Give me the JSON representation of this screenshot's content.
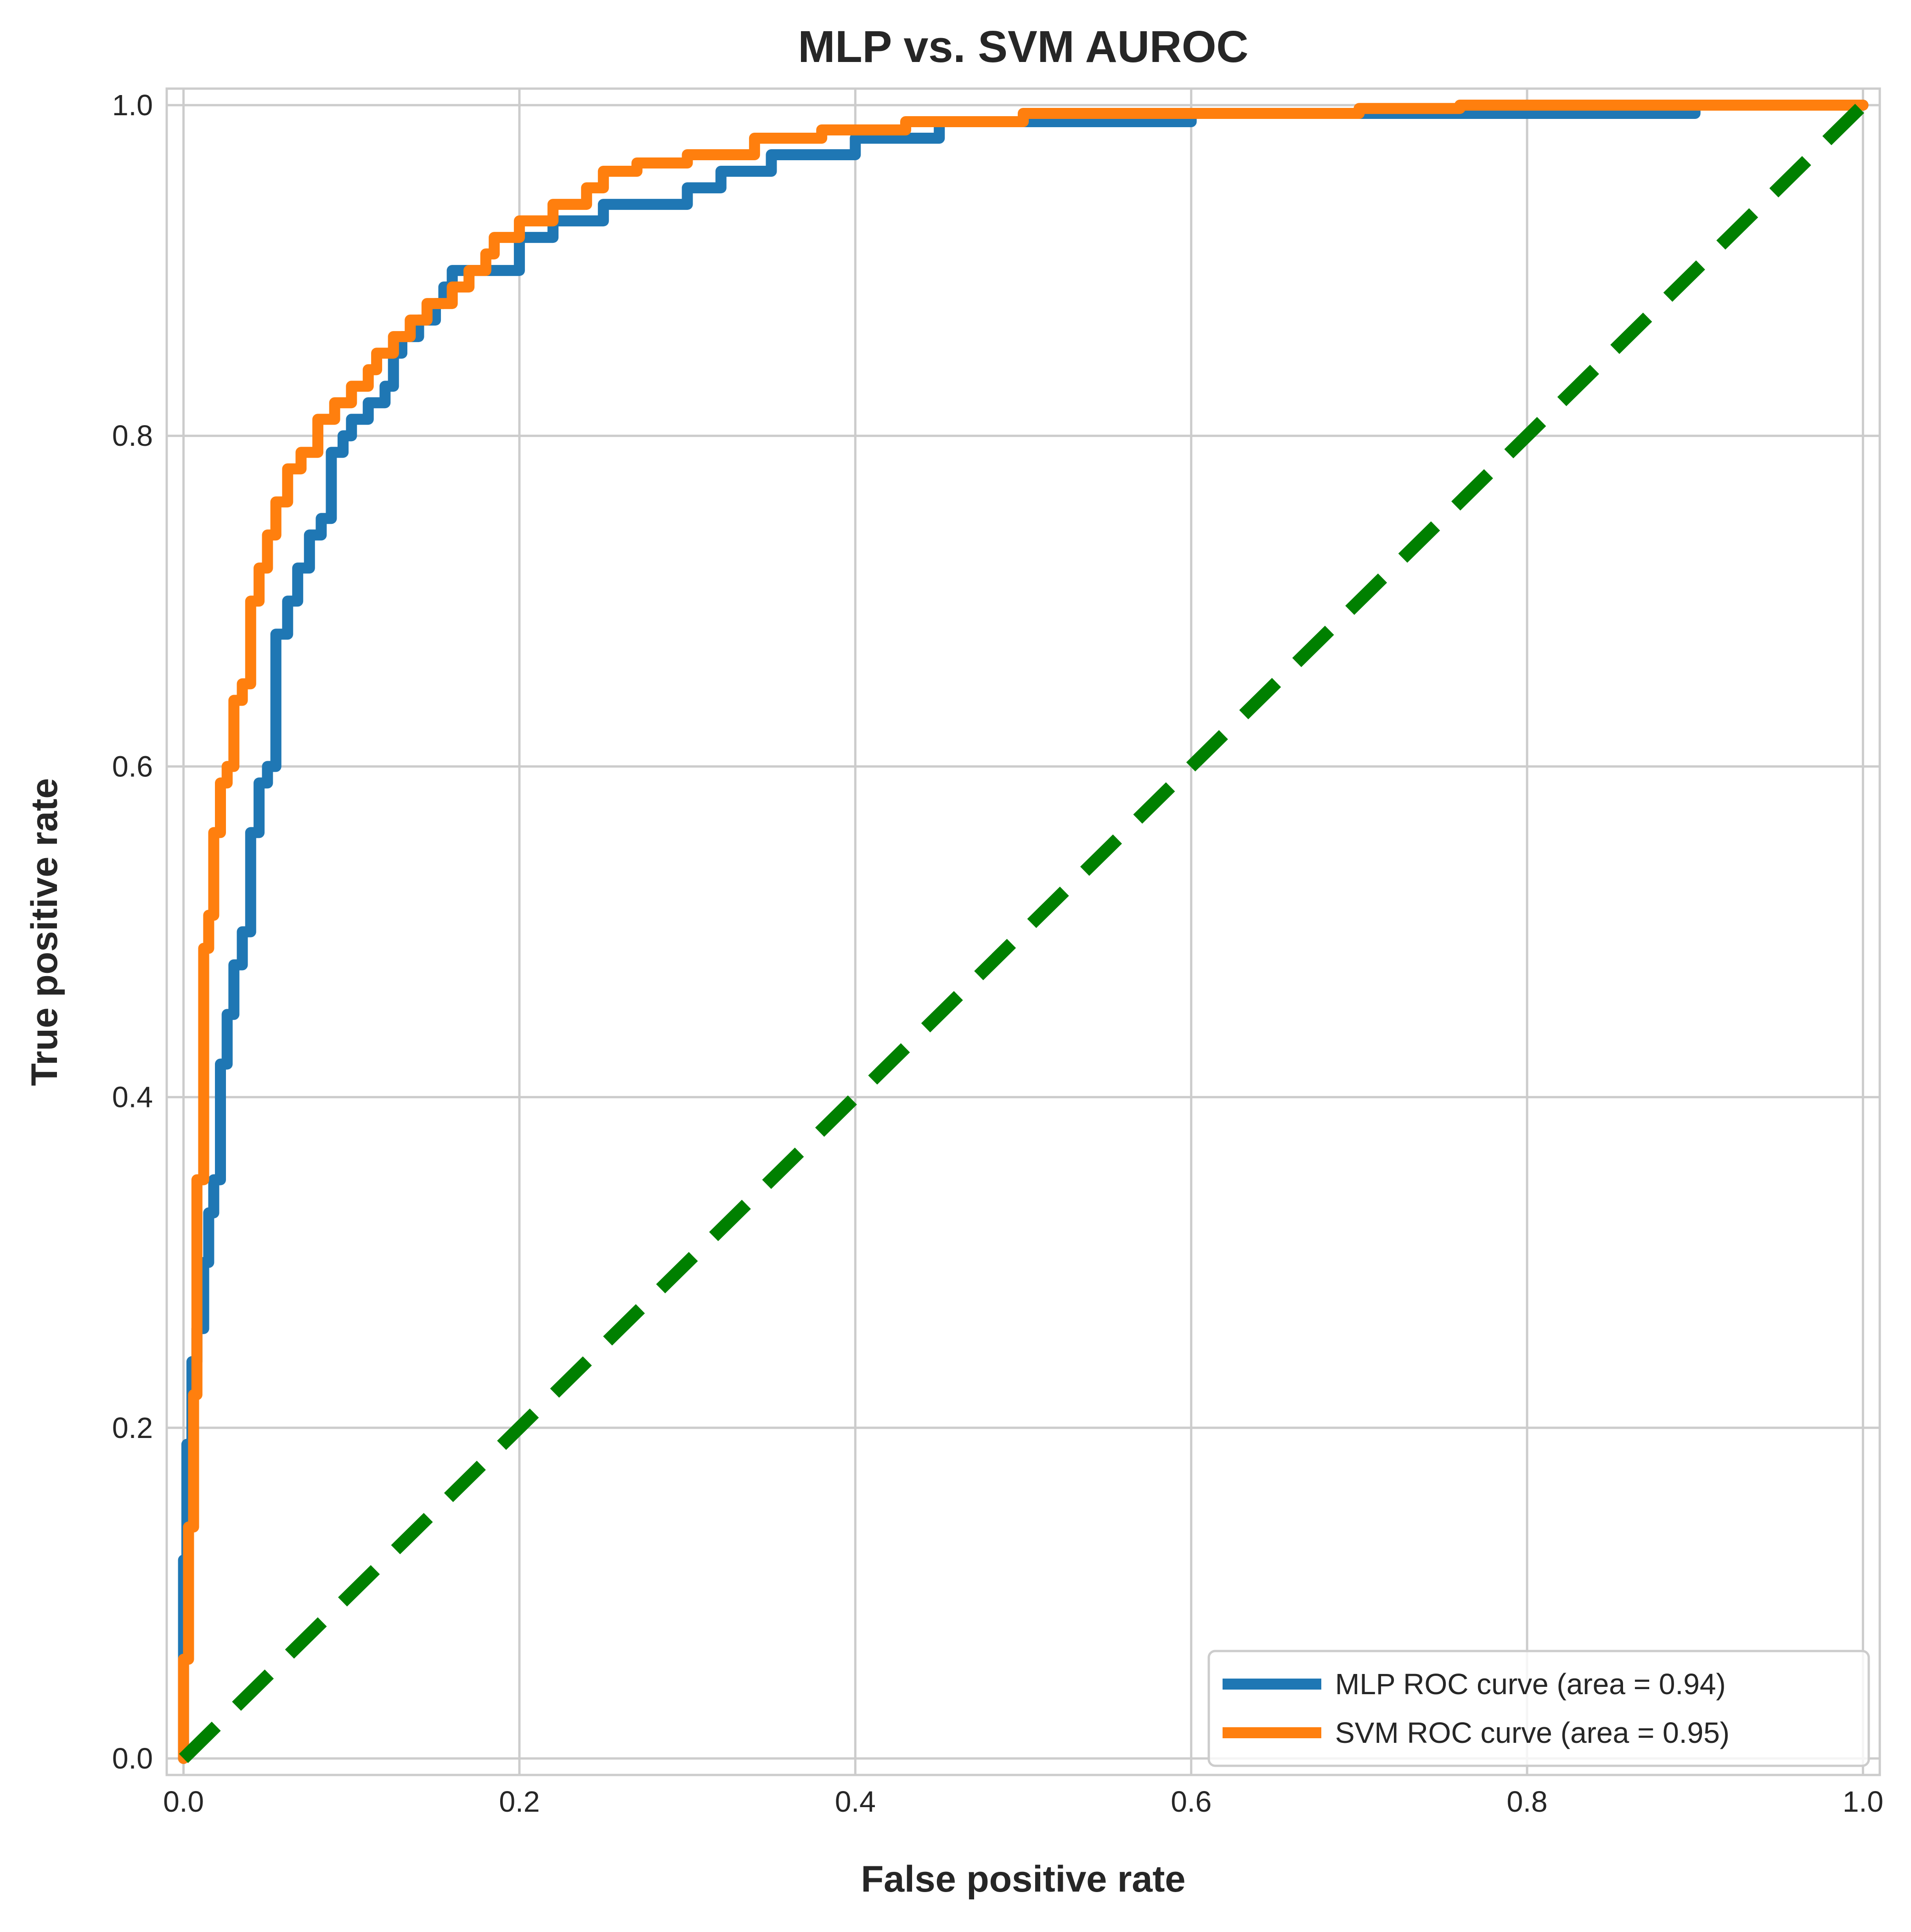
{
  "chart_data": {
    "type": "line",
    "title": "MLP vs. SVM AUROC",
    "xlabel": "False positive rate",
    "ylabel": "True positive rate",
    "xlim": [
      -0.01,
      1.01
    ],
    "ylim": [
      -0.01,
      1.01
    ],
    "xticks": [
      "0.0",
      "0.2",
      "0.4",
      "0.6",
      "0.8",
      "1.0"
    ],
    "yticks": [
      "0.0",
      "0.2",
      "0.4",
      "0.6",
      "0.8",
      "1.0"
    ],
    "grid": true,
    "legend_position": "lower-right",
    "series": [
      {
        "name": "MLP ROC curve (area = 0.94)",
        "color": "#1f77b4",
        "style": "solid",
        "x": [
          0.0,
          0.0,
          0.002,
          0.002,
          0.005,
          0.005,
          0.008,
          0.008,
          0.012,
          0.012,
          0.015,
          0.015,
          0.018,
          0.018,
          0.022,
          0.022,
          0.026,
          0.026,
          0.03,
          0.03,
          0.035,
          0.035,
          0.04,
          0.04,
          0.045,
          0.045,
          0.05,
          0.05,
          0.055,
          0.055,
          0.062,
          0.062,
          0.068,
          0.068,
          0.075,
          0.075,
          0.082,
          0.082,
          0.088,
          0.088,
          0.095,
          0.095,
          0.1,
          0.1,
          0.11,
          0.11,
          0.12,
          0.12,
          0.125,
          0.125,
          0.13,
          0.13,
          0.14,
          0.14,
          0.15,
          0.15,
          0.155,
          0.155,
          0.16,
          0.16,
          0.2,
          0.2,
          0.22,
          0.22,
          0.25,
          0.25,
          0.3,
          0.3,
          0.32,
          0.32,
          0.35,
          0.35,
          0.4,
          0.4,
          0.45,
          0.45,
          0.6,
          0.6,
          0.9,
          0.9,
          1.0
        ],
        "y": [
          0.0,
          0.12,
          0.12,
          0.19,
          0.19,
          0.24,
          0.24,
          0.26,
          0.26,
          0.3,
          0.3,
          0.33,
          0.33,
          0.35,
          0.35,
          0.42,
          0.42,
          0.45,
          0.45,
          0.48,
          0.48,
          0.5,
          0.5,
          0.56,
          0.56,
          0.59,
          0.59,
          0.6,
          0.6,
          0.68,
          0.68,
          0.7,
          0.7,
          0.72,
          0.72,
          0.74,
          0.74,
          0.75,
          0.75,
          0.79,
          0.79,
          0.8,
          0.8,
          0.81,
          0.81,
          0.82,
          0.82,
          0.83,
          0.83,
          0.85,
          0.85,
          0.86,
          0.86,
          0.87,
          0.87,
          0.88,
          0.88,
          0.89,
          0.89,
          0.9,
          0.9,
          0.92,
          0.92,
          0.93,
          0.93,
          0.94,
          0.94,
          0.95,
          0.95,
          0.96,
          0.96,
          0.97,
          0.97,
          0.98,
          0.98,
          0.99,
          0.99,
          0.995,
          0.995,
          1.0,
          1.0
        ]
      },
      {
        "name": "SVM ROC curve (area = 0.95)",
        "color": "#ff7f0e",
        "style": "solid",
        "x": [
          0.0,
          0.0,
          0.003,
          0.003,
          0.006,
          0.006,
          0.008,
          0.008,
          0.012,
          0.012,
          0.015,
          0.015,
          0.018,
          0.018,
          0.022,
          0.022,
          0.026,
          0.026,
          0.03,
          0.03,
          0.035,
          0.035,
          0.04,
          0.04,
          0.045,
          0.045,
          0.05,
          0.05,
          0.055,
          0.055,
          0.062,
          0.062,
          0.07,
          0.07,
          0.08,
          0.08,
          0.09,
          0.09,
          0.1,
          0.1,
          0.11,
          0.11,
          0.115,
          0.115,
          0.125,
          0.125,
          0.135,
          0.135,
          0.145,
          0.145,
          0.16,
          0.16,
          0.17,
          0.17,
          0.18,
          0.18,
          0.185,
          0.185,
          0.2,
          0.2,
          0.22,
          0.22,
          0.24,
          0.24,
          0.25,
          0.25,
          0.27,
          0.27,
          0.3,
          0.3,
          0.34,
          0.34,
          0.38,
          0.38,
          0.43,
          0.43,
          0.5,
          0.5,
          0.7,
          0.7,
          0.76,
          0.76,
          1.0
        ],
        "y": [
          0.0,
          0.06,
          0.06,
          0.14,
          0.14,
          0.22,
          0.22,
          0.35,
          0.35,
          0.49,
          0.49,
          0.51,
          0.51,
          0.56,
          0.56,
          0.59,
          0.59,
          0.6,
          0.6,
          0.64,
          0.64,
          0.65,
          0.65,
          0.7,
          0.7,
          0.72,
          0.72,
          0.74,
          0.74,
          0.76,
          0.76,
          0.78,
          0.78,
          0.79,
          0.79,
          0.81,
          0.81,
          0.82,
          0.82,
          0.83,
          0.83,
          0.84,
          0.84,
          0.85,
          0.85,
          0.86,
          0.86,
          0.87,
          0.87,
          0.88,
          0.88,
          0.89,
          0.89,
          0.9,
          0.9,
          0.91,
          0.91,
          0.92,
          0.92,
          0.93,
          0.93,
          0.94,
          0.94,
          0.95,
          0.95,
          0.96,
          0.96,
          0.965,
          0.965,
          0.97,
          0.97,
          0.98,
          0.98,
          0.985,
          0.985,
          0.99,
          0.99,
          0.995,
          0.995,
          0.998,
          0.998,
          1.0,
          1.0
        ]
      },
      {
        "name": "",
        "color": "#008000",
        "style": "dashed",
        "x": [
          0.0,
          1.0
        ],
        "y": [
          0.0,
          1.0
        ]
      }
    ],
    "legend": [
      {
        "label": "MLP ROC curve (area = 0.94)",
        "color": "#1f77b4"
      },
      {
        "label": "SVM ROC curve (area = 0.95)",
        "color": "#ff7f0e"
      }
    ]
  }
}
